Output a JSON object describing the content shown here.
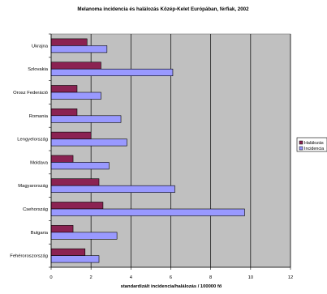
{
  "chart_data": {
    "type": "bar",
    "orientation": "horizontal",
    "title": "Melanoma incidencia és halálozás Közép-Kelet Európában, férfiak,  2002",
    "xlabel": "standardizált incidencia/halálozás / 100000 fő",
    "ylabel": "",
    "xlim": [
      0,
      12
    ],
    "xticks": [
      "0",
      "2",
      "4",
      "6",
      "8",
      "10",
      "12"
    ],
    "grid": true,
    "legend_position": "right",
    "categories": [
      "Ukrajna",
      "Szlovakia",
      "Orosz Federáció",
      "Romania",
      "Lengyelország",
      "Moldava",
      "Magyarország",
      "Csehország",
      "Bulgaria",
      "Fehéroroszország"
    ],
    "series": [
      {
        "name": "Halálozás",
        "color": "#8b2252",
        "values": [
          1.8,
          2.5,
          1.3,
          1.3,
          2.0,
          1.1,
          2.4,
          2.6,
          1.1,
          1.7
        ]
      },
      {
        "name": "Incidencia",
        "color": "#9999ff",
        "values": [
          2.8,
          6.1,
          2.5,
          3.5,
          3.8,
          2.9,
          6.2,
          9.7,
          3.3,
          2.4
        ]
      }
    ]
  },
  "colors": {
    "plot_background": "#c0c0c0",
    "gridline": "#000000"
  }
}
